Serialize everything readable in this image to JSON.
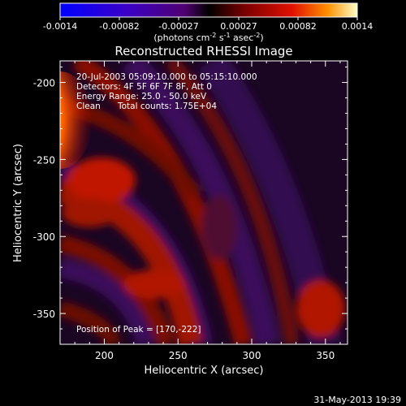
{
  "colorbar": {
    "ticks": [
      "-0.0014",
      "-0.00082",
      "-0.00027",
      "0.00027",
      "0.00082",
      "0.0014"
    ],
    "tick_values": [
      -0.0014,
      -0.00082,
      -0.00027,
      0.00027,
      0.00082,
      0.0014
    ],
    "range": [
      -0.0014,
      0.0014
    ],
    "unit_main": "(photons cm",
    "unit_exp1": "-2",
    "unit_s": " s",
    "unit_exp2": "-1",
    "unit_asec": " asec",
    "unit_exp3": "-2",
    "unit_close": ")"
  },
  "chart_data": {
    "type": "heatmap",
    "title": "Reconstructed RHESSI Image",
    "xlabel": "Heliocentric X (arcsec)",
    "ylabel": "Heliocentric Y (arcsec)",
    "xlim": [
      170,
      365
    ],
    "ylim": [
      -370,
      -186
    ],
    "xticks": [
      200,
      250,
      300,
      350
    ],
    "yticks": [
      -200,
      -250,
      -300,
      -350
    ],
    "annotations": [
      "20-Jul-2003 05:09:10.000 to 05:15:10.000",
      "Detectors: 4F 5F 6F 7F 8F, Att 0",
      "Energy Range: 25.0 - 50.0 keV",
      "Clean",
      "Total counts: 1.75E+04"
    ],
    "peak_label": "Position of Peak = [170,-222]",
    "peak": [
      170,
      -222
    ],
    "footer": "31-May-2013 19:39",
    "colors": {
      "background": "#000000",
      "text": "#ffffff"
    }
  }
}
